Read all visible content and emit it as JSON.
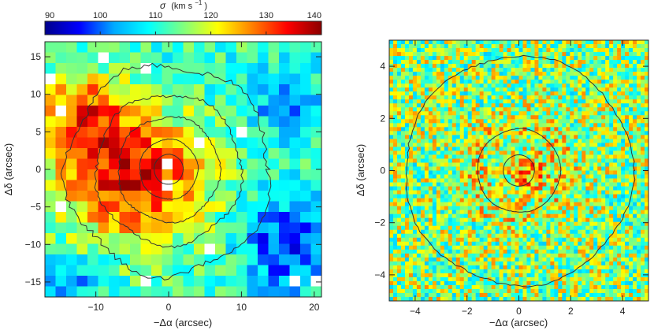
{
  "chart_data": [
    {
      "type": "heatmap",
      "title": "",
      "colorbar": {
        "label": "σ (km s⁻¹)",
        "label_parts": {
          "symbol": "σ",
          "unit": "(km s",
          "exp": "−1",
          "close": ")"
        },
        "ticks": [
          90,
          100,
          110,
          120,
          130,
          140
        ],
        "tick_labels": [
          "90",
          "100",
          "110",
          "120",
          "130",
          "140"
        ],
        "range": [
          90,
          140
        ],
        "colormap": [
          "#00008b",
          "#0000ff",
          "#00aaff",
          "#00ffff",
          "#7fff7f",
          "#ffff00",
          "#ff7f00",
          "#ff0000",
          "#8b0000"
        ]
      },
      "xlabel": "−Δα (arcsec)",
      "ylabel": "Δδ (arcsec)",
      "xlim": [
        -17,
        21
      ],
      "ylim": [
        -17,
        17
      ],
      "xticks": [
        -10,
        0,
        10,
        20
      ],
      "xtick_labels": [
        "−10",
        "0",
        "10",
        "20"
      ],
      "yticks": [
        -15,
        -10,
        -5,
        0,
        5,
        10,
        15
      ],
      "ytick_labels": [
        "−15",
        "−10",
        "−5",
        "0",
        "5",
        "10",
        "15"
      ],
      "contour_center": [
        0,
        0
      ],
      "contour_radii": [
        2,
        4,
        7,
        10,
        14
      ],
      "grid": false
    },
    {
      "type": "heatmap",
      "title": "",
      "xlabel": "−Δα (arcsec)",
      "ylabel": "Δδ (arcsec)",
      "xlim": [
        -5,
        5
      ],
      "ylim": [
        -5,
        5
      ],
      "xticks": [
        -4,
        -2,
        0,
        2,
        4
      ],
      "xtick_labels": [
        "−4",
        "−2",
        "0",
        "2",
        "4"
      ],
      "yticks": [
        -4,
        -2,
        0,
        2,
        4
      ],
      "ytick_labels": [
        "−4",
        "−2",
        "0",
        "2",
        "4"
      ],
      "contour_center": [
        0,
        0
      ],
      "contour_radii": [
        0.6,
        1.6,
        4.4
      ],
      "grid": false
    }
  ]
}
